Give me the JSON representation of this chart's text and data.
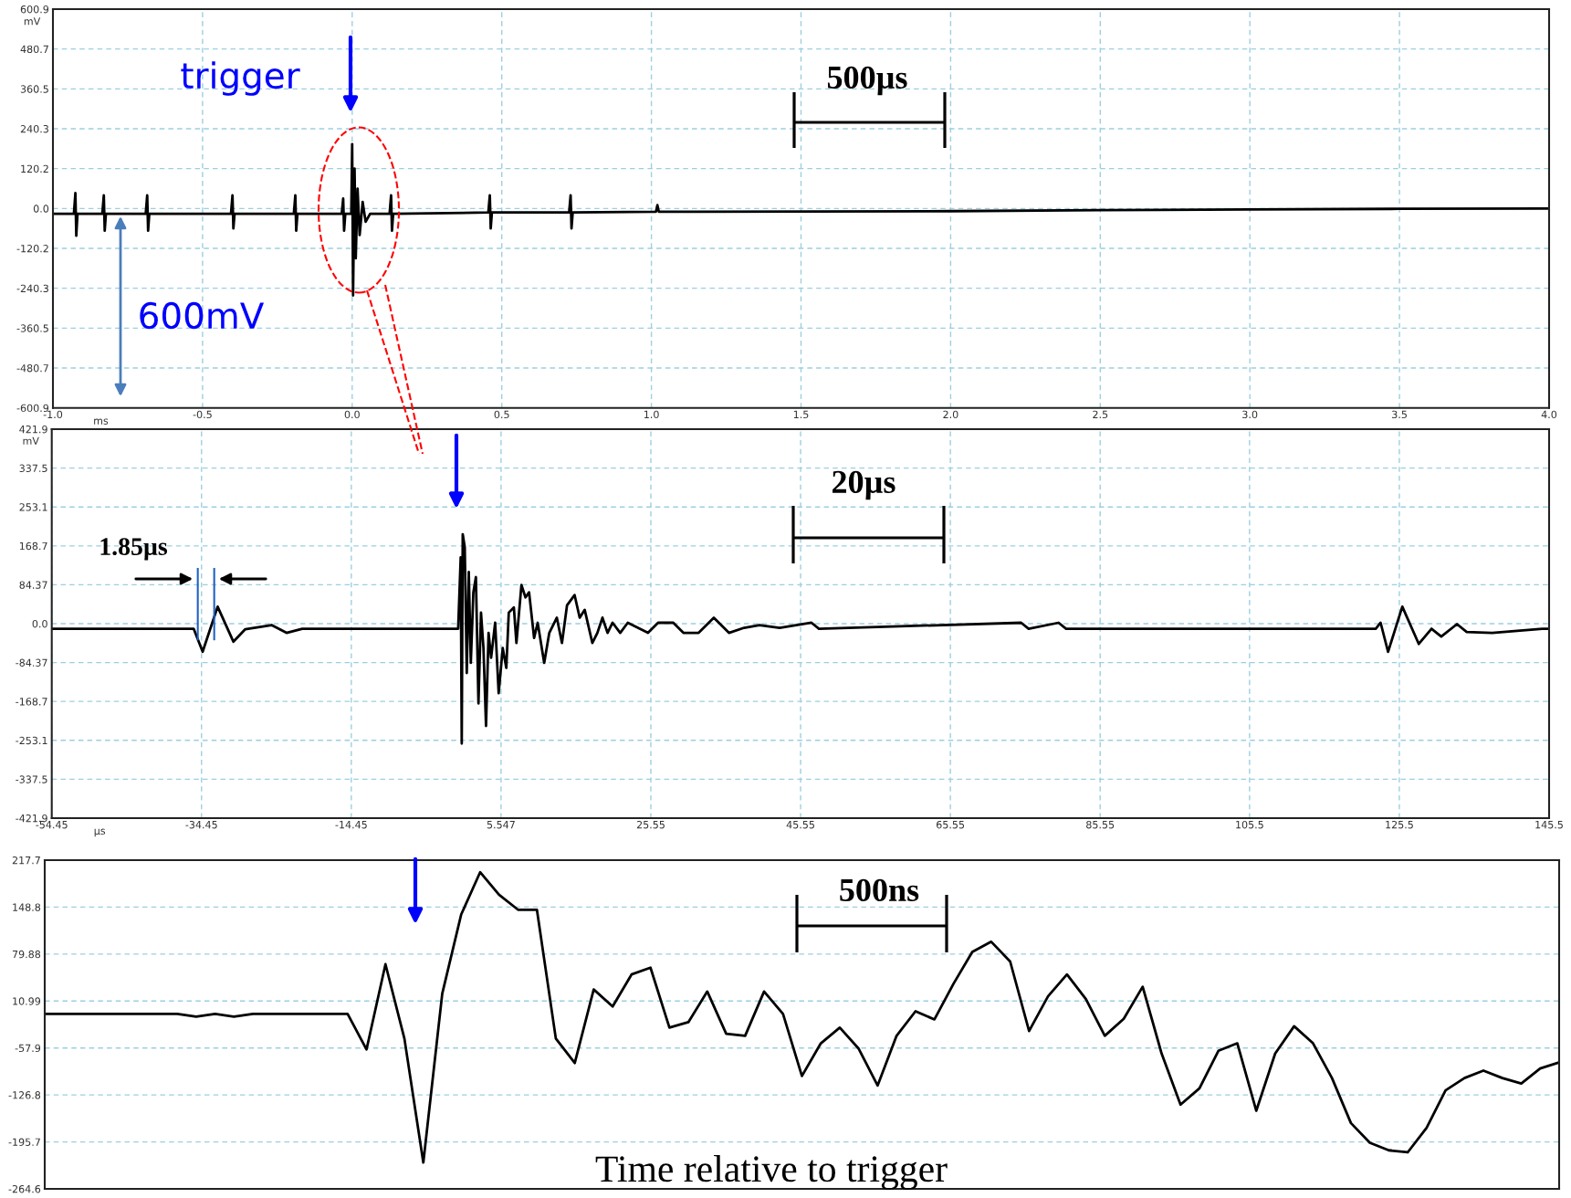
{
  "chart_data": [
    {
      "type": "line",
      "xlabel": "ms",
      "ylabel": "mV",
      "xlim": [
        -1.0,
        4.0
      ],
      "ylim": [
        -600.9,
        600.9
      ],
      "xticks": [
        {
          "value": -1,
          "label": "-1.0"
        },
        -0.5,
        {
          "value": 0,
          "label": "0.0"
        },
        0.5,
        {
          "value": 1,
          "label": "1.0"
        },
        1.5,
        {
          "value": 2,
          "label": "2.0"
        },
        2.5,
        {
          "value": 3,
          "label": "3.0"
        },
        3.5,
        {
          "value": 4,
          "label": "4.0"
        }
      ],
      "yticks": [
        -600.9,
        -480.7,
        -360.5,
        -240.3,
        -120.2,
        {
          "value": 0,
          "label": "0.0"
        },
        120.2,
        240.3,
        360.5,
        480.7,
        600.9
      ],
      "grid": true,
      "annotations": [
        "trigger",
        "600mV",
        "500µs"
      ],
      "x": [
        -1.0,
        -0.93,
        -0.925,
        -0.922,
        -0.918,
        -0.835,
        -0.83,
        -0.827,
        -0.823,
        -0.69,
        -0.685,
        -0.682,
        -0.678,
        -0.405,
        -0.4,
        -0.397,
        -0.393,
        -0.195,
        -0.19,
        -0.187,
        -0.183,
        -0.035,
        -0.03,
        -0.027,
        -0.023,
        -0.003,
        0.0,
        0.003,
        0.008,
        0.012,
        0.018,
        0.025,
        0.035,
        0.045,
        0.06,
        0.125,
        0.13,
        0.133,
        0.137,
        0.455,
        0.46,
        0.463,
        0.467,
        0.725,
        0.73,
        0.733,
        0.737,
        1.015,
        1.02,
        1.025,
        2.0,
        2.5,
        3.0,
        3.5,
        4.0
      ],
      "series": [
        {
          "color": "#000000",
          "values": [
            -16,
            -16,
            47,
            -82,
            -16,
            -16,
            40,
            -67,
            -16,
            -16,
            40,
            -67,
            -16,
            -16,
            40,
            -60,
            -16,
            -16,
            40,
            -67,
            -16,
            -16,
            30,
            -67,
            -16,
            -16,
            194,
            -262,
            120,
            -150,
            60,
            -80,
            20,
            -40,
            -16,
            -16,
            40,
            -67,
            -16,
            -12,
            40,
            -60,
            -12,
            -12,
            40,
            -60,
            -12,
            -10,
            10,
            -10,
            -8,
            -5,
            -3,
            -1,
            0
          ]
        }
      ]
    },
    {
      "type": "line",
      "xlabel": "µs",
      "ylabel": "mV",
      "xlim": [
        -54.45,
        145.5
      ],
      "ylim": [
        -421.9,
        421.9
      ],
      "xticks": [
        -54.45,
        -34.45,
        -14.45,
        5.547,
        25.55,
        45.55,
        65.55,
        85.55,
        105.5,
        125.5,
        145.5
      ],
      "yticks": [
        -421.9,
        -337.5,
        -253.1,
        -168.7,
        -84.37,
        {
          "value": 0,
          "label": "0.0"
        },
        84.37,
        168.7,
        253.1,
        337.5,
        421.9
      ],
      "grid": true,
      "annotations": [
        "20µs",
        {
          "text": "1.85µs",
          "x": -34.95,
          "y": -34
        }
      ],
      "x": [
        -54.45,
        -35.5,
        -34.3,
        -32.3,
        -30.2,
        -28.6,
        -25.1,
        -23.1,
        -21.0,
        -0.18,
        0.16,
        0.3,
        0.43,
        0.7,
        0.97,
        1.24,
        1.51,
        1.85,
        2.19,
        2.53,
        2.87,
        3.2,
        3.54,
        3.88,
        4.22,
        4.76,
        5.23,
        5.77,
        6.25,
        6.58,
        7.26,
        7.6,
        8.27,
        8.81,
        9.29,
        9.96,
        10.44,
        11.31,
        11.99,
        13.0,
        13.68,
        14.36,
        15.37,
        16.05,
        16.72,
        17.74,
        18.41,
        19.09,
        19.77,
        20.44,
        21.46,
        22.47,
        23.82,
        25.17,
        26.52,
        28.55,
        29.9,
        31.93,
        33.96,
        35.98,
        38.01,
        40.05,
        42.75,
        47.0,
        48.0,
        75.0,
        76.0,
        80.0,
        81.0,
        122.35,
        123.0,
        124.0,
        125.9,
        128.1,
        129.8,
        131.1,
        133.2,
        134.5,
        137.9,
        144.6,
        145.5
      ],
      "series": [
        {
          "color": "#000000",
          "values": [
            -11,
            -11,
            -61,
            37,
            -39,
            -12,
            -3,
            -20,
            -11,
            -11,
            144,
            -260,
            194,
            166,
            -107,
            112,
            -85,
            68,
            101,
            -173,
            24,
            -53,
            -222,
            -20,
            -74,
            2,
            -151,
            -53,
            -96,
            24,
            35,
            -42,
            84,
            57,
            68,
            -31,
            2,
            -85,
            -20,
            13,
            -42,
            40,
            62,
            13,
            30,
            -42,
            -20,
            13,
            -20,
            2,
            -20,
            2,
            -9,
            -20,
            2,
            2,
            -20,
            -20,
            13,
            -20,
            -9,
            -3,
            -9,
            2,
            -11,
            2,
            -11,
            2,
            -11,
            -11,
            2,
            -61,
            37,
            -44,
            -11,
            -28,
            -1,
            -18,
            -20,
            -11,
            -11
          ]
        }
      ]
    },
    {
      "type": "line",
      "ylim": [
        -264.6,
        217.7
      ],
      "yticks": [
        -264.6,
        -195.7,
        -126.8,
        -57.9,
        10.99,
        79.88,
        148.8,
        217.7
      ],
      "grid": "y",
      "tick_labels": "y",
      "annotations": [
        "500ns",
        "Time relative to trigger"
      ],
      "categories": [
        null,
        null,
        null,
        null,
        null,
        null,
        null,
        null,
        null,
        null,
        null,
        null,
        null,
        null,
        null,
        null,
        null,
        null,
        null,
        null,
        null,
        null,
        null,
        null,
        null,
        null,
        null,
        null,
        null,
        null,
        null,
        null,
        null,
        null,
        null,
        null,
        null,
        null,
        null,
        null,
        null,
        null,
        null,
        null,
        null,
        null,
        null,
        null,
        null,
        null,
        null,
        null,
        null,
        null,
        null,
        null,
        null,
        null,
        null,
        null,
        null,
        null,
        null,
        null,
        null,
        null,
        null,
        null,
        null,
        null,
        null,
        null,
        null,
        null,
        null,
        null,
        null,
        null,
        null,
        null,
        null
      ],
      "series": [
        {
          "color": "#000000",
          "values": [
            -8,
            -8,
            -8,
            -8,
            -8,
            -8,
            -8,
            -8,
            -12,
            -8,
            -12,
            -8,
            -8,
            -8,
            -8,
            -8,
            -8,
            -60,
            65,
            -44,
            -226,
            22,
            138,
            200,
            167,
            145,
            145,
            -44,
            -80,
            28,
            3,
            50,
            60,
            -28,
            -20,
            25,
            -37,
            -40,
            25,
            -8,
            -99,
            -51,
            -28,
            -59,
            -113,
            -40,
            -4,
            -16,
            36,
            83,
            98,
            69,
            -33,
            18,
            50,
            14,
            -40,
            -15,
            32,
            -66,
            -141,
            -117,
            -62,
            -51,
            -150,
            -66,
            -26,
            -51,
            -102,
            -168,
            -197,
            -208,
            -211,
            -175,
            -120,
            -102,
            -91,
            -102,
            -110,
            -88,
            -79
          ]
        }
      ]
    }
  ]
}
